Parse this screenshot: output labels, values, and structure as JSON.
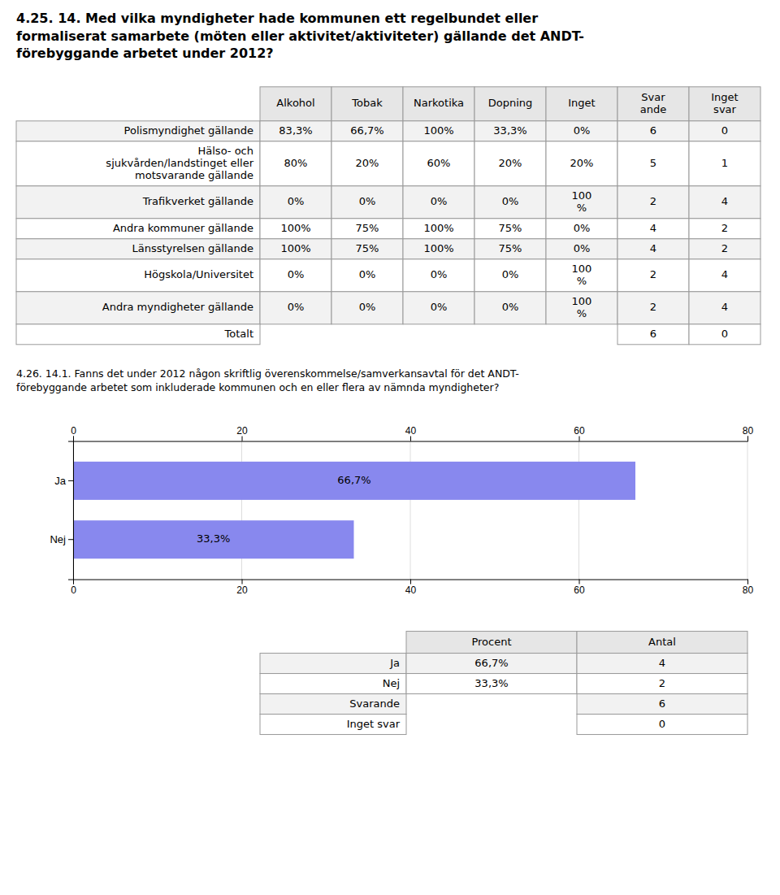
{
  "chart_data": [
    {
      "type": "table",
      "title": "4.25. 14. Med vilka myndigheter hade kommunen ett regelbundet eller\nformaliserat samarbete (möten eller aktivitet/aktiviteter) gällande det ANDT-\nförebyggande arbetet under 2012?",
      "categories": [
        "Polismyndighet gällande",
        "Hälso- och\nsjukvården/landstinget eller\nmotsvarande gällande",
        "Trafikverket gällande",
        "Andra kommuner gällande",
        "Länsstyrelsen gällande",
        "Högskola/Universitet",
        "Andra myndigheter gällande",
        "Totalt"
      ],
      "series": [
        {
          "name": "Alkohol",
          "values": [
            83.3,
            80,
            0,
            100,
            100,
            0,
            0,
            null
          ],
          "value_labels": [
            "83,3%",
            "80%",
            "0%",
            "100%",
            "100%",
            "0%",
            "0%",
            null
          ]
        },
        {
          "name": "Tobak",
          "values": [
            66.7,
            20,
            0,
            75,
            75,
            0,
            0,
            null
          ],
          "value_labels": [
            "66,7%",
            "20%",
            "0%",
            "75%",
            "75%",
            "0%",
            "0%",
            null
          ]
        },
        {
          "name": "Narkotika",
          "values": [
            100,
            60,
            0,
            100,
            100,
            0,
            0,
            null
          ],
          "value_labels": [
            "100%",
            "60%",
            "0%",
            "100%",
            "100%",
            "0%",
            "0%",
            null
          ]
        },
        {
          "name": "Dopning",
          "values": [
            33.3,
            20,
            0,
            75,
            75,
            0,
            0,
            null
          ],
          "value_labels": [
            "33,3%",
            "20%",
            "0%",
            "75%",
            "75%",
            "0%",
            "0%",
            null
          ]
        },
        {
          "name": "Inget",
          "values": [
            0,
            20,
            100,
            0,
            0,
            100,
            100,
            null
          ],
          "value_labels": [
            "0%",
            "20%",
            "100\n%",
            "0%",
            "0%",
            "100\n%",
            "100\n%",
            null
          ]
        },
        {
          "name": "Svar\nande",
          "values": [
            6,
            5,
            2,
            4,
            4,
            2,
            2,
            6
          ]
        },
        {
          "name": "Inget\nsvar",
          "values": [
            0,
            1,
            4,
            2,
            2,
            4,
            4,
            0
          ]
        }
      ]
    },
    {
      "type": "bar",
      "orientation": "horizontal",
      "title": "4.26. 14.1. Fanns det under 2012 någon skriftlig överenskommelse/samverkansavtal för det ANDT-\nförebyggande arbetet som inkluderade kommunen och en eller flera av nämnda myndigheter?",
      "categories": [
        "Ja",
        "Nej"
      ],
      "values": [
        66.7,
        33.3
      ],
      "value_labels": [
        "66,7%",
        "33,3%"
      ],
      "data_labels": true,
      "color": "#8888ee",
      "xlim": [
        0,
        80
      ],
      "xticks": [
        0,
        20,
        40,
        60,
        80
      ],
      "grid": true
    },
    {
      "type": "table",
      "categories": [
        "Ja",
        "Nej",
        "Svarande",
        "Inget svar"
      ],
      "series": [
        {
          "name": "Procent",
          "values": [
            66.7,
            33.3,
            null,
            null
          ],
          "value_labels": [
            "66,7%",
            "33,3%",
            null,
            null
          ]
        },
        {
          "name": "Antal",
          "values": [
            4,
            2,
            6,
            0
          ]
        }
      ]
    }
  ]
}
